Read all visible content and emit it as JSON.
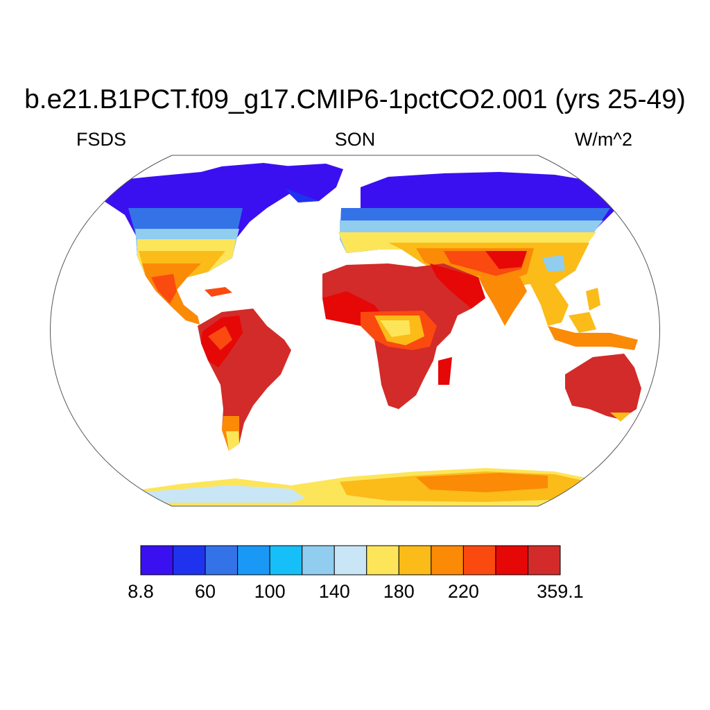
{
  "title": "b.e21.B1PCT.f09_g17.CMIP6-1pctCO2.001 (yrs 25-49)",
  "left_string": "FSDS",
  "center_string": "SON",
  "right_string": "W/m^2",
  "colorbar": {
    "colors": [
      "#3a10f0",
      "#1f33ee",
      "#3472e8",
      "#1a98f5",
      "#17bff8",
      "#90cdef",
      "#c9e6f7",
      "#fde55a",
      "#fbbb18",
      "#fb8a07",
      "#fa4a10",
      "#e60707",
      "#d22b29"
    ],
    "labels": [
      "8.8",
      "60",
      "100",
      "140",
      "180",
      "220",
      "359.1"
    ]
  }
}
